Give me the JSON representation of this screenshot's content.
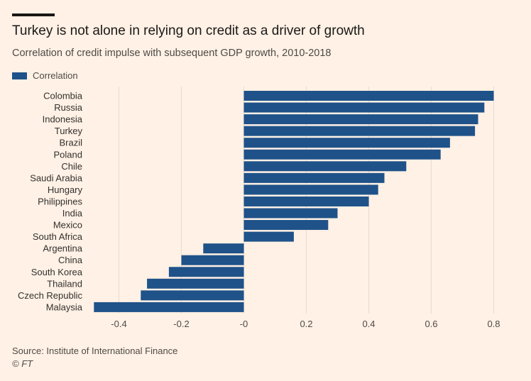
{
  "header": {
    "title": "Turkey is not alone in relying on credit as a driver of growth",
    "subtitle": "Correlation of credit impulse with subsequent GDP growth, 2010-2018"
  },
  "legend": {
    "label": "Correlation"
  },
  "footer": {
    "source": "Source: Institute of International Finance",
    "copyright": "© FT"
  },
  "colors": {
    "bar": "#1f5289",
    "background": "#fff1e5",
    "grid": "#e8dbce"
  },
  "chart_data": {
    "type": "bar",
    "orientation": "horizontal",
    "title": "Turkey is not alone in relying on credit as a driver of growth",
    "subtitle": "Correlation of credit impulse with subsequent GDP growth, 2010-2018",
    "xlabel": "",
    "ylabel": "",
    "xlim": [
      -0.48,
      0.82
    ],
    "ticks": [
      -0.4,
      -0.2,
      0,
      0.2,
      0.4,
      0.6,
      0.8
    ],
    "tick_labels": [
      "-0.4",
      "-0.2",
      "-0",
      "0.2",
      "0.4",
      "0.6",
      "0.8"
    ],
    "grid": true,
    "legend_position": "top-left",
    "categories": [
      "Colombia",
      "Russia",
      "Indonesia",
      "Turkey",
      "Brazil",
      "Poland",
      "Chile",
      "Saudi Arabia",
      "Hungary",
      "Philippines",
      "India",
      "Mexico",
      "South Africa",
      "Argentina",
      "China",
      "South Korea",
      "Thailand",
      "Czech Republic",
      "Malaysia"
    ],
    "series": [
      {
        "name": "Correlation",
        "values": [
          0.8,
          0.77,
          0.75,
          0.74,
          0.66,
          0.63,
          0.52,
          0.45,
          0.43,
          0.4,
          0.3,
          0.27,
          0.16,
          -0.13,
          -0.2,
          -0.24,
          -0.31,
          -0.33,
          -0.48
        ]
      }
    ]
  }
}
